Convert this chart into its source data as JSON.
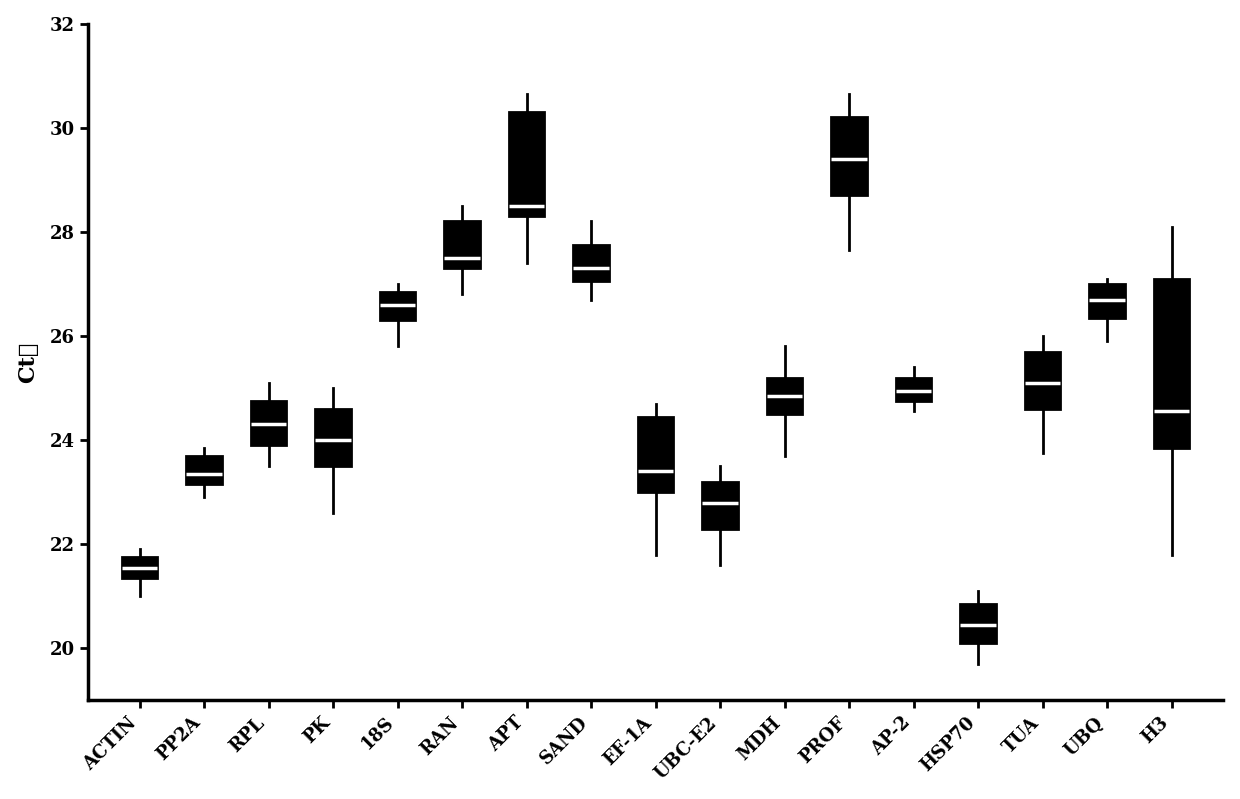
{
  "categories": [
    "ACTIN",
    "PP2A",
    "RPL",
    "PK",
    "18S",
    "RAN",
    "APT",
    "SAND",
    "EF-1A",
    "UBC-E2",
    "MDH",
    "PROF",
    "AP-2",
    "HSP70",
    "TUA",
    "UBQ",
    "H3"
  ],
  "box_data": {
    "ACTIN": {
      "min": 21.0,
      "q1": 21.35,
      "median": 21.55,
      "q3": 21.75,
      "max": 21.9
    },
    "PP2A": {
      "min": 22.9,
      "q1": 23.15,
      "median": 23.35,
      "q3": 23.7,
      "max": 23.85
    },
    "RPL": {
      "min": 23.5,
      "q1": 23.9,
      "median": 24.3,
      "q3": 24.75,
      "max": 25.1
    },
    "PK": {
      "min": 22.6,
      "q1": 23.5,
      "median": 24.0,
      "q3": 24.6,
      "max": 25.0
    },
    "18S": {
      "min": 25.8,
      "q1": 26.3,
      "median": 26.6,
      "q3": 26.85,
      "max": 27.0
    },
    "RAN": {
      "min": 26.8,
      "q1": 27.3,
      "median": 27.5,
      "q3": 28.2,
      "max": 28.5
    },
    "APT": {
      "min": 27.4,
      "q1": 28.3,
      "median": 28.5,
      "q3": 30.3,
      "max": 30.65
    },
    "SAND": {
      "min": 26.7,
      "q1": 27.05,
      "median": 27.3,
      "q3": 27.75,
      "max": 28.2
    },
    "EF-1A": {
      "min": 21.8,
      "q1": 23.0,
      "median": 23.4,
      "q3": 24.45,
      "max": 24.7
    },
    "UBC-E2": {
      "min": 21.6,
      "q1": 22.3,
      "median": 22.8,
      "q3": 23.2,
      "max": 23.5
    },
    "MDH": {
      "min": 23.7,
      "q1": 24.5,
      "median": 24.85,
      "q3": 25.2,
      "max": 25.8
    },
    "PROF": {
      "min": 27.65,
      "q1": 28.7,
      "median": 29.4,
      "q3": 30.2,
      "max": 30.65
    },
    "AP-2": {
      "min": 24.55,
      "q1": 24.75,
      "median": 24.95,
      "q3": 25.2,
      "max": 25.4
    },
    "HSP70": {
      "min": 19.7,
      "q1": 20.1,
      "median": 20.45,
      "q3": 20.85,
      "max": 21.1
    },
    "TUA": {
      "min": 23.75,
      "q1": 24.6,
      "median": 25.1,
      "q3": 25.7,
      "max": 26.0
    },
    "UBQ": {
      "min": 25.9,
      "q1": 26.35,
      "median": 26.7,
      "q3": 27.0,
      "max": 27.1
    },
    "H3": {
      "min": 21.8,
      "q1": 23.85,
      "median": 24.55,
      "q3": 27.1,
      "max": 28.1
    }
  },
  "ylabel": "Ct値",
  "ylim": [
    19.0,
    32.0
  ],
  "yticks": [
    20,
    22,
    24,
    26,
    28,
    30,
    32
  ],
  "box_color": "#000000",
  "box_facecolor": "#000000",
  "median_color": "#ffffff",
  "whisker_color": "#000000",
  "box_width": 0.55,
  "linewidth": 2.0,
  "axis_fontsize": 16,
  "tick_fontsize": 13
}
